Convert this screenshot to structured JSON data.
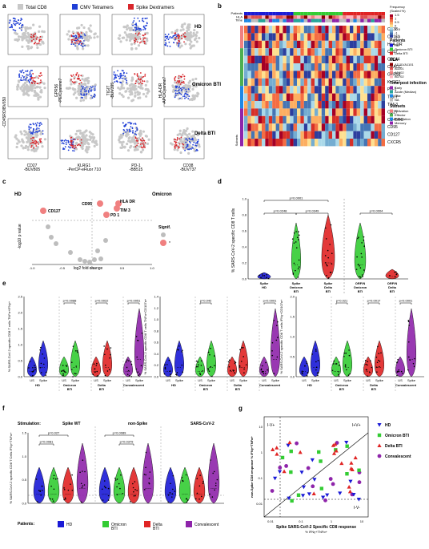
{
  "colors": {
    "cd8": "#c8c8c8",
    "cmv": "#1f3fd6",
    "spike": "#d8262b",
    "hd": "#1a1ad6",
    "omicron": "#33cc33",
    "delta": "#e02424",
    "conv": "#8e24aa",
    "sig": "#f08080",
    "nonsig": "#bdbdbd"
  },
  "a": {
    "label": "a",
    "legend": [
      {
        "text": "Total CD8",
        "color": "#c8c8c8"
      },
      {
        "text": "CMV Tetramers",
        "color": "#1f3fd6"
      },
      {
        "text": "Spike Dextramers",
        "color": "#d8262b"
      }
    ],
    "rows": [
      {
        "label": "HD"
      },
      {
        "label": "Omicron BTI"
      },
      {
        "label": "Delta BTI"
      }
    ],
    "xlabels": [
      "CD27\n-BUV805",
      "KLRG1\n-PerCP-eFluor 710",
      "PD-1\n-BB515",
      "CD38\n-BUV737"
    ],
    "ylabels": [
      "-CD45RO/BV650",
      "GPR56\n-PE/Cyanine7",
      "TIGIT\n-BUV395",
      "HLA-DR\n-APC/Cyanine7"
    ]
  },
  "b": {
    "label": "b",
    "scale_title": "Frequency",
    "scale_sub": "(Scaled %)",
    "scale_ticks": [
      "1.5",
      "1",
      "0.5",
      "0",
      "-0.5",
      "-1",
      "-1.5"
    ],
    "track_labels": [
      "Patients",
      "HLA",
      "Time"
    ],
    "markers": [
      "CD38",
      "CD161",
      "HLA-DR",
      "CD57",
      "CD244",
      "CRACC",
      "GPR56",
      "KLRG1",
      "PD-1",
      "TIGIT",
      "TIM-3",
      "CD27",
      "CD45RO",
      "CD95",
      "CD127",
      "CXCR5"
    ],
    "subsets_label": "Subsets",
    "legends": [
      {
        "title": "Patients",
        "items": [
          {
            "t": "HD",
            "c": "#1a1ad6"
          },
          {
            "t": "Omicron BTI",
            "c": "#33cc33"
          },
          {
            "t": "Delta BTI",
            "c": "#e02424"
          }
        ]
      },
      {
        "title": "HLA",
        "items": [
          {
            "t": "A1101/A1101",
            "c": "#8b0000"
          },
          {
            "t": "A0201",
            "c": "#e05050"
          },
          {
            "t": "A2402",
            "c": "#f08080"
          },
          {
            "t": "B0702",
            "c": "#ffb6c1"
          }
        ]
      },
      {
        "title": "Time post infection",
        "items": [
          {
            "t": "Early",
            "c": "#8e24aa"
          },
          {
            "t": "Acute (Median)",
            "c": "#26a69a"
          },
          {
            "t": "Late",
            "c": "#1e88e5"
          },
          {
            "t": "NA",
            "c": "#bdbdbd"
          }
        ]
      },
      {
        "title": "Subsets",
        "items": [
          {
            "t": "Activation",
            "c": "#f08080"
          },
          {
            "t": "Effector",
            "c": "#4caf50"
          },
          {
            "t": "Exhaustion",
            "c": "#1e88e5"
          },
          {
            "t": "Memory",
            "c": "#8e24aa"
          }
        ]
      }
    ]
  },
  "c": {
    "label": "c",
    "left": "HD",
    "right": "Omicron",
    "xlabel": "log2 fold change",
    "ylabel": "-log10 p value",
    "legend_title": "Signif.",
    "legend_star": "*",
    "xticks": [
      "-1.0",
      "-0.5",
      "0.0",
      "0.5",
      "1.0"
    ],
    "points": [
      {
        "lab": "HLA_DR"
      },
      {
        "lab": "TIM_3"
      },
      {
        "lab": "CD95"
      },
      {
        "lab": "PD_1"
      },
      {
        "lab": "CD127"
      }
    ]
  },
  "d": {
    "label": "d",
    "ylabel": "% SARS-CoV-2 specific CD8 T cells",
    "yticks": [
      "0.0",
      "0.2",
      "0.4",
      "0.6",
      "0.8",
      "1.0"
    ],
    "groups": [
      "Spike\nHD",
      "Spike\nOmicron\nBTI",
      "Spike\nDelta\nBTI",
      "ORF/N\nOmicron\nBTI",
      "ORF/N\nDelta\nBTI"
    ],
    "pvals": [
      "p=0.0001",
      "p=0.0248",
      "p=0.0349",
      "p=0.0004"
    ]
  },
  "e": {
    "label": "e",
    "panels": [
      {
        "ylabel": "% SARS-CoV-2 specific CD8 T cells TNFα+IFNγ+",
        "pvals": [
          "p=0.0088",
          "p=0.0022",
          "p=0.0051"
        ],
        "yticks": [
          "0.0",
          "0.5",
          "1.0",
          "1.5",
          "2.0",
          "2.5"
        ]
      },
      {
        "ylabel": "% SARS-CoV-2 specific CD8 T cells TNFα+CD107a+",
        "pvals": [
          "p=0.042",
          "p<0.0001"
        ],
        "yticks": [
          "0.0",
          "0.2",
          "0.4",
          "0.6",
          "0.8",
          "1.0",
          "1.2",
          "1.4"
        ]
      },
      {
        "ylabel": "% SARS-CoV-2 specific CD8 T cells IFNγ+CD107a+",
        "pvals": [
          "p=0.021",
          "p=0.0017",
          "p<0.0001"
        ],
        "yticks": [
          "0.0",
          "0.5",
          "1.0",
          "1.5",
          "2.0"
        ]
      }
    ],
    "xpairs": [
      "US",
      "Spike"
    ],
    "groups": [
      "HD",
      "Omicron\nBTI",
      "Delta\nBTI",
      "Convalescent"
    ]
  },
  "f": {
    "label": "f",
    "stim_label": "Stimulation:",
    "stims": [
      "Spike WT",
      "non-Spike",
      "SARS-CoV-2"
    ],
    "pvals": [
      "p=0.027",
      "p=0.0081",
      "p=0.0089",
      "p=0.0379"
    ],
    "ylabel": "% SARS-CoV-2 specific CD8 T Cells IFNγ+TNFα+",
    "yticks": [
      "0.0",
      "0.5",
      "1.0",
      "1.5"
    ],
    "patients_label": "Patients:",
    "legend": [
      {
        "t": "HD",
        "c": "#1a1ad6"
      },
      {
        "t": "Omicron\nBTI",
        "c": "#33cc33"
      },
      {
        "t": "Delta\nBTI",
        "c": "#e02424"
      },
      {
        "t": "Convalescent",
        "c": "#8e24aa"
      }
    ]
  },
  "g": {
    "label": "g",
    "quads": [
      "I-V+",
      "I+V+",
      "I-V-"
    ],
    "xlabel": "Spike SARS-CoV-2 Specific CD8 response",
    "xlabel2": "% IFNγ+TNFα+",
    "ylabel": "non-Spike CD8 response % IFNγ+TNFα+",
    "xticks": [
      "0.01",
      "0.1",
      "1",
      "10"
    ],
    "yticks": [
      "10",
      "1",
      "0.1",
      "0.01"
    ],
    "legend": [
      {
        "t": "HD",
        "c": "#1a1ad6",
        "shape": "tri-down"
      },
      {
        "t": "Omicron BTI",
        "c": "#33cc33",
        "shape": "square"
      },
      {
        "t": "Delta BTI",
        "c": "#e02424",
        "shape": "tri-up"
      },
      {
        "t": "Convalescent",
        "c": "#8e24aa",
        "shape": "circle"
      }
    ]
  }
}
